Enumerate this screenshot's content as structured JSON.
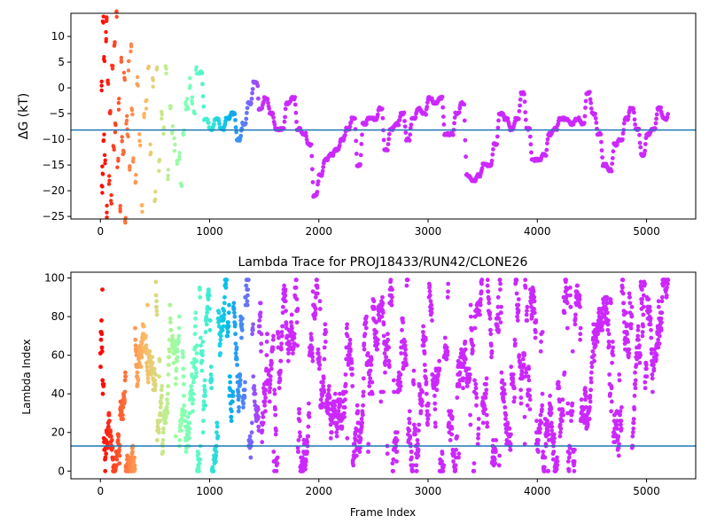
{
  "chart_data": [
    {
      "type": "scatter",
      "title": "",
      "xlabel": "",
      "ylabel": "ΔG (kT)",
      "xlim": [
        -270,
        5450
      ],
      "ylim": [
        -25.5,
        14.5
      ],
      "xticks": [
        0,
        1000,
        2000,
        3000,
        4000,
        5000
      ],
      "xtick_labels": [
        "0",
        "1000",
        "2000",
        "3000",
        "4000",
        "5000"
      ],
      "yticks": [
        -25,
        -20,
        -15,
        -10,
        -5,
        0,
        5,
        10
      ],
      "ytick_labels": [
        "−25",
        "−20",
        "−15",
        "−10",
        "−5",
        "0",
        "5",
        "10"
      ],
      "grid": false,
      "hline": {
        "y": -8.2,
        "color": "#1f77b4"
      },
      "colormap": "rainbow",
      "trace_keypoints": {
        "x": [
          900,
          950,
          1000,
          1050,
          1100,
          1150,
          1200,
          1250,
          1300,
          1350,
          1400,
          1420,
          1450,
          1500,
          1550,
          1600,
          1650,
          1700,
          1750,
          1800,
          1850,
          1900,
          1950,
          2000,
          2050,
          2100,
          2150,
          2200,
          2250,
          2300,
          2350,
          2400,
          2450,
          2500,
          2550,
          2600,
          2650,
          2700,
          2750,
          2800,
          2850,
          2900,
          2950,
          3000,
          3050,
          3100,
          3150,
          3200,
          3250,
          3300,
          3350,
          3400,
          3450,
          3500,
          3550,
          3600,
          3650,
          3700,
          3750,
          3800,
          3850,
          3900,
          3950,
          4000,
          4050,
          4100,
          4150,
          4200,
          4250,
          4300,
          4350,
          4400,
          4450,
          4500,
          4550,
          4600,
          4650,
          4700,
          4750,
          4800,
          4850,
          4900,
          4950,
          5000,
          5050,
          5100,
          5150,
          5200
        ],
        "y": [
          3,
          -6,
          -8,
          -6,
          -8,
          -6,
          -5,
          -10,
          -7,
          -3,
          1,
          1,
          -4,
          -2,
          -5,
          -8,
          -8,
          -3,
          -2,
          -8,
          -9,
          -11,
          -21,
          -17,
          -14,
          -13,
          -12,
          -10,
          -8,
          -6,
          -15,
          -7,
          -6,
          -6,
          -4,
          -12,
          -8,
          -7,
          -5,
          -10,
          -6,
          -4,
          -5,
          -2,
          -3,
          -2,
          -9,
          -9,
          -5,
          -3,
          -17,
          -18,
          -17,
          -15,
          -15,
          -11,
          -5,
          -6,
          -8,
          -6,
          -1,
          -8,
          -14,
          -14,
          -13,
          -9,
          -8,
          -6,
          -6,
          -7,
          -6,
          -7,
          -1,
          -5,
          -9,
          -15,
          -16,
          -11,
          -10,
          -6,
          -4,
          -8,
          -13,
          -9,
          -8,
          -4,
          -6,
          -5
        ]
      },
      "early_scatter": {
        "x": [
          10,
          15,
          20,
          25,
          30,
          35,
          40,
          50,
          55,
          60,
          70,
          80,
          90,
          100,
          110,
          120,
          130,
          140,
          150,
          160,
          170,
          180,
          190,
          200,
          210,
          220,
          230,
          240,
          250,
          260,
          270,
          280,
          290,
          300,
          320,
          340,
          360,
          380,
          400,
          420,
          440,
          460,
          480,
          500,
          520,
          540,
          560,
          580,
          600,
          620,
          640,
          660,
          680,
          700,
          720,
          740,
          760,
          780,
          800,
          820,
          840,
          860,
          880
        ],
        "y": [
          0,
          -20,
          -16,
          13,
          -10,
          6,
          -14,
          10,
          14,
          -24,
          2,
          -18,
          -5,
          -22,
          4,
          -12,
          8,
          -8,
          14,
          -15,
          -3,
          -24,
          6,
          -10,
          -13,
          2,
          -25,
          -6,
          -9,
          4,
          -16,
          8,
          -4,
          -14,
          -18,
          1,
          -10,
          -24,
          -6,
          -3,
          3,
          -12,
          1,
          -21,
          4,
          -15,
          -5,
          -8,
          3,
          -17,
          -4,
          -8,
          -11,
          -15,
          -13,
          -19,
          -8,
          -4,
          -3,
          1,
          -2,
          -4,
          3
        ]
      }
    },
    {
      "type": "scatter",
      "title": "Lambda Trace for PROJ18433/RUN42/CLONE26",
      "xlabel": "Frame Index",
      "ylabel": "Lambda Index",
      "xlim": [
        -270,
        5450
      ],
      "ylim": [
        -4,
        103
      ],
      "xticks": [
        0,
        1000,
        2000,
        3000,
        4000,
        5000
      ],
      "xtick_labels": [
        "0",
        "1000",
        "2000",
        "3000",
        "4000",
        "5000"
      ],
      "yticks": [
        0,
        20,
        40,
        60,
        80,
        100
      ],
      "ytick_labels": [
        "0",
        "20",
        "40",
        "60",
        "80",
        "100"
      ],
      "grid": false,
      "hline": {
        "y": 13,
        "color": "#1f77b4"
      },
      "colormap": "rainbow",
      "n_points": 5200,
      "value_range": [
        0,
        99
      ]
    }
  ]
}
